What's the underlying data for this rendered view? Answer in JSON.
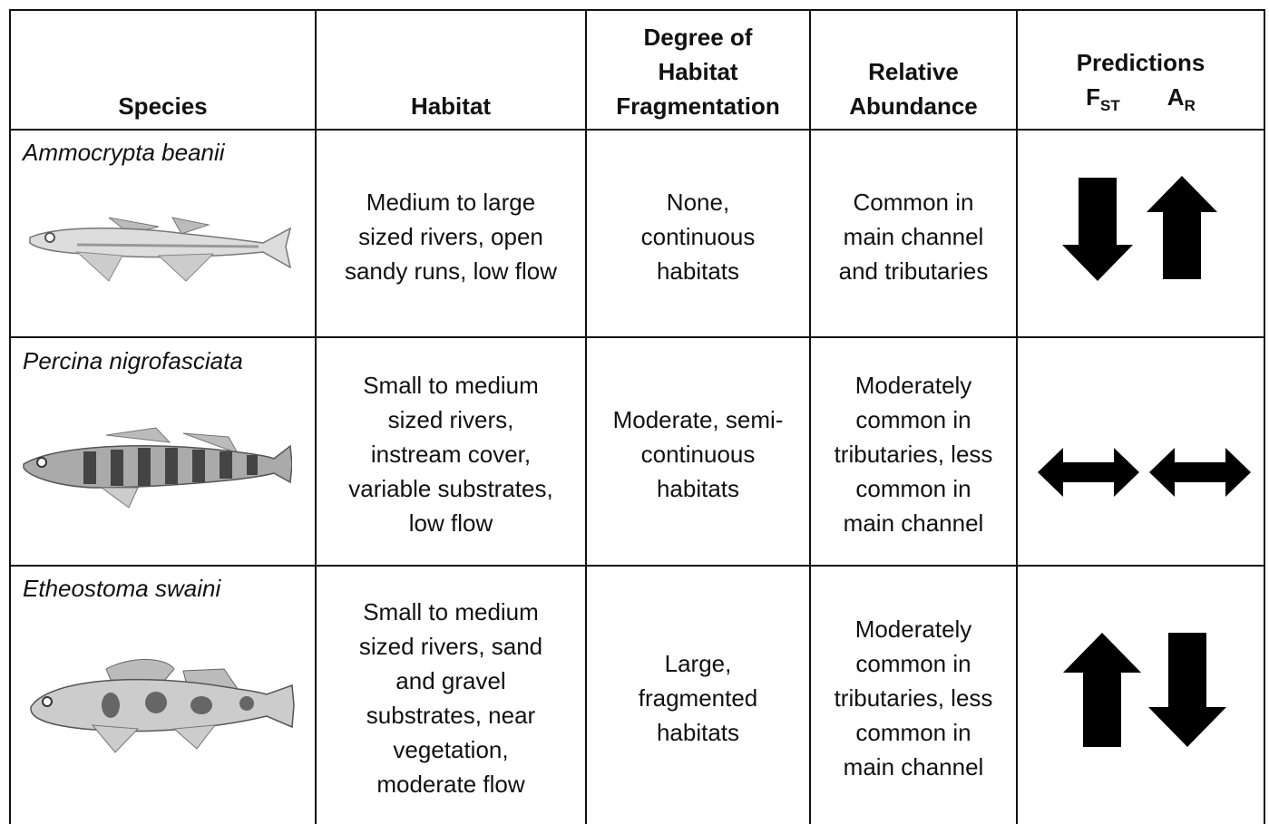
{
  "table": {
    "header": {
      "species": "Species",
      "habitat": "Habitat",
      "fragmentation": [
        "Degree of",
        "Habitat",
        "Fragmentation"
      ],
      "abundance": [
        "Relative",
        "Abundance"
      ],
      "predictions": {
        "title": "Predictions",
        "fst": {
          "symbol": "F",
          "subscript": "ST"
        },
        "ar": {
          "symbol": "A",
          "subscript": "R"
        }
      }
    },
    "rows": [
      {
        "species": "Ammocrypta beanii",
        "habitat": [
          "Medium to large",
          "sized rivers, open",
          "sandy runs, low flow"
        ],
        "fragmentation": [
          "None,",
          "continuous",
          "habitats"
        ],
        "abundance": [
          "Common in",
          "main channel",
          "and tributaries"
        ]
      },
      {
        "species": "Percina nigrofasciata",
        "habitat": [
          "Small to medium",
          "sized rivers,",
          "instream cover,",
          "variable substrates,",
          "low flow"
        ],
        "fragmentation": [
          "Moderate, semi-",
          "continuous",
          "habitats"
        ],
        "abundance": [
          "Moderately",
          "common in",
          "tributaries, less",
          "common in",
          "main channel"
        ]
      },
      {
        "species": "Etheostoma swaini",
        "habitat": [
          "Small to medium",
          "sized rivers, sand",
          "and gravel",
          "substrates, near",
          "vegetation,",
          "moderate flow"
        ],
        "fragmentation": [
          "Large,",
          "fragmented",
          "habitats"
        ],
        "abundance": [
          "Moderately",
          "common in",
          "tributaries, less",
          "common in",
          "main channel"
        ]
      }
    ]
  }
}
